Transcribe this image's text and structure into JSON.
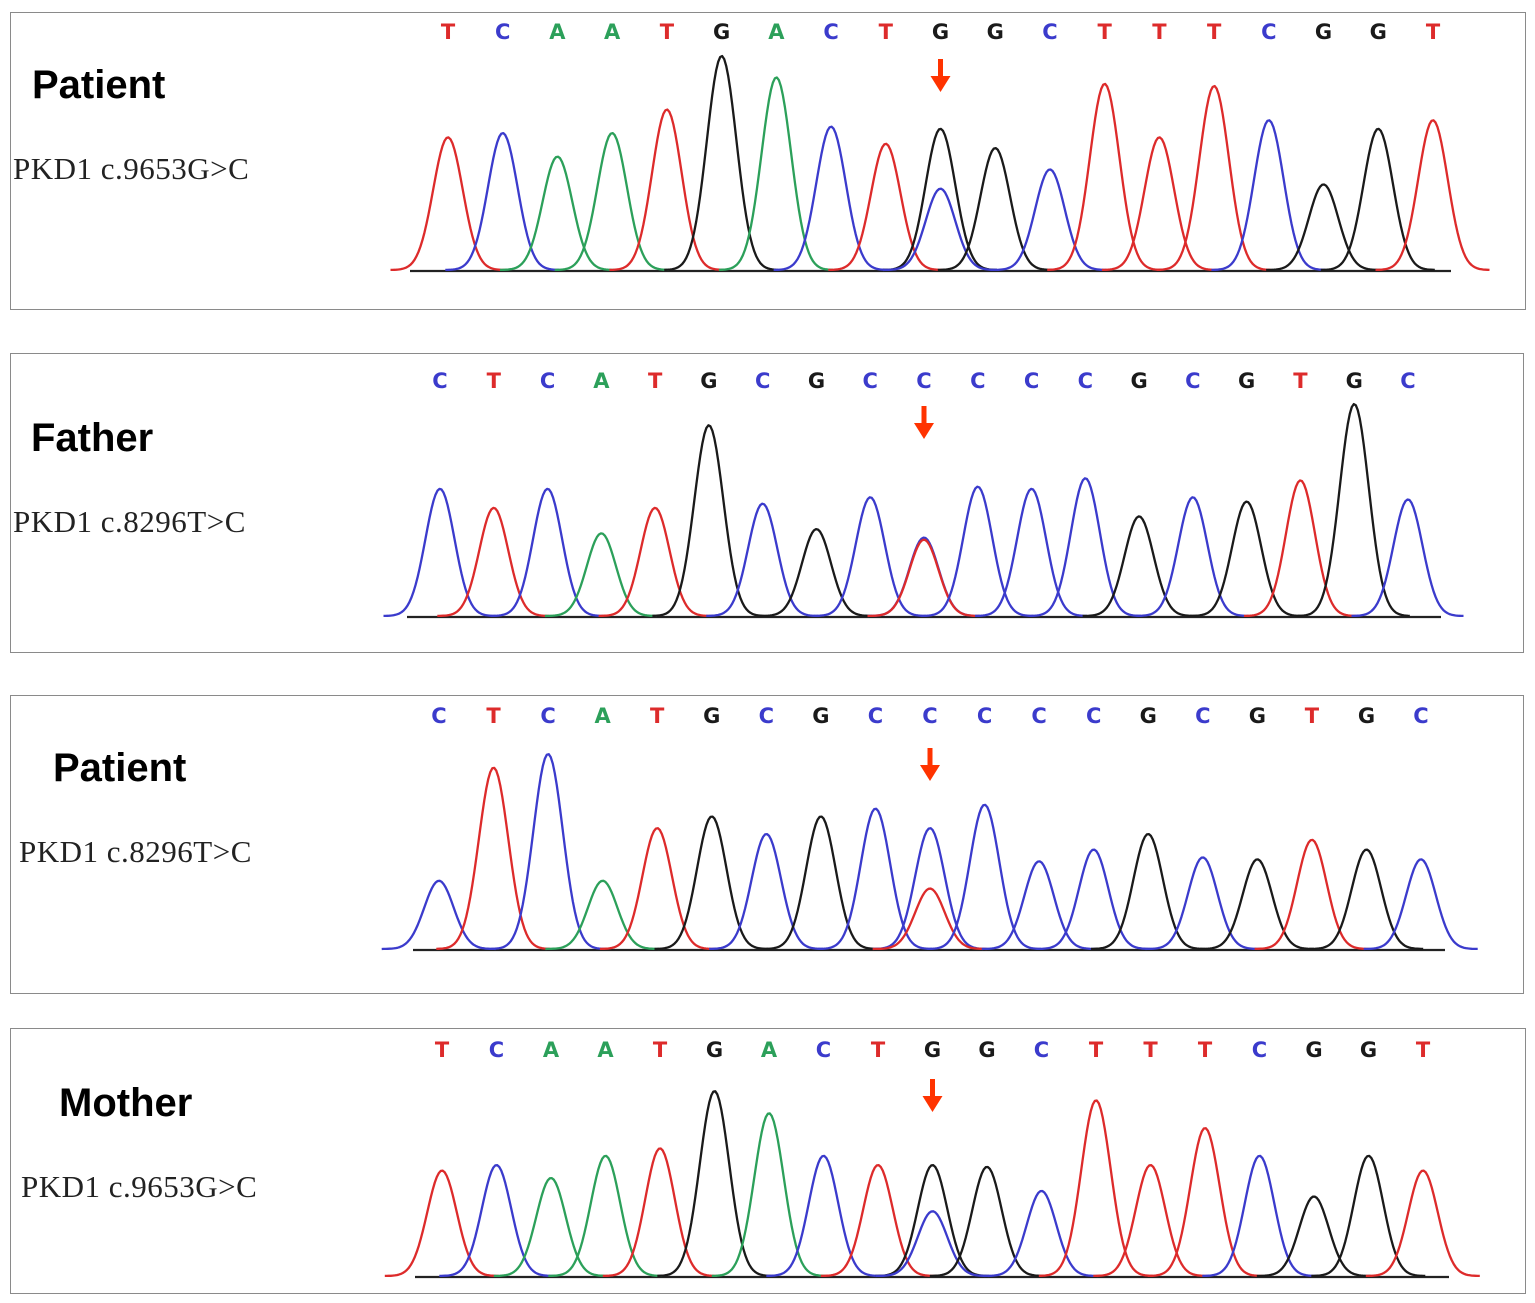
{
  "colors": {
    "A": "#2ca05a",
    "C": "#3b3bcc",
    "G": "#1a1a1a",
    "T": "#dd2b2b",
    "arrow": "#ff3300",
    "baseline": "#222222"
  },
  "panels": [
    {
      "label": "Patient",
      "variant": "PKD1  c.9653G>C",
      "bases": [
        "T",
        "C",
        "A",
        "A",
        "T",
        "G",
        "A",
        "C",
        "T",
        "G",
        "G",
        "C",
        "T",
        "T",
        "T",
        "C",
        "G",
        "G",
        "T"
      ],
      "peak_heights": [
        0.62,
        0.64,
        0.53,
        0.64,
        0.75,
        1.0,
        0.9,
        0.67,
        0.59,
        0.66,
        0.57,
        0.47,
        0.87,
        0.62,
        0.86,
        0.7,
        0.4,
        0.66,
        0.7
      ],
      "mutation_index": 9,
      "secondary_peak": {
        "base": "C",
        "height": 0.38
      }
    },
    {
      "label": "Father",
      "variant": "PKD1  c.8296T>C",
      "bases": [
        "C",
        "T",
        "C",
        "A",
        "T",
        "G",
        "C",
        "G",
        "C",
        "C",
        "C",
        "C",
        "C",
        "G",
        "C",
        "G",
        "T",
        "G",
        "C"
      ],
      "peak_heights": [
        0.6,
        0.51,
        0.6,
        0.39,
        0.51,
        0.9,
        0.53,
        0.41,
        0.56,
        0.37,
        0.61,
        0.6,
        0.65,
        0.47,
        0.56,
        0.54,
        0.64,
        1.0,
        0.55
      ],
      "mutation_index": 9,
      "secondary_peak": {
        "base": "T",
        "height": 0.36
      }
    },
    {
      "label": "Patient",
      "variant": "PKD1  c.8296T>C",
      "bases": [
        "C",
        "T",
        "C",
        "A",
        "T",
        "G",
        "C",
        "G",
        "C",
        "C",
        "C",
        "C",
        "C",
        "G",
        "C",
        "G",
        "T",
        "G",
        "C"
      ],
      "peak_heights": [
        0.35,
        0.93,
        1.0,
        0.35,
        0.62,
        0.68,
        0.59,
        0.68,
        0.72,
        0.62,
        0.74,
        0.45,
        0.51,
        0.59,
        0.47,
        0.46,
        0.56,
        0.51,
        0.46
      ],
      "mutation_index": 9,
      "secondary_peak": {
        "base": "T",
        "height": 0.31
      }
    },
    {
      "label": "Mother",
      "variant": "PKD1  c.9653G>C",
      "bases": [
        "T",
        "C",
        "A",
        "A",
        "T",
        "G",
        "A",
        "C",
        "T",
        "G",
        "G",
        "C",
        "T",
        "T",
        "T",
        "C",
        "G",
        "G",
        "T"
      ],
      "peak_heights": [
        0.57,
        0.6,
        0.53,
        0.65,
        0.69,
        1.0,
        0.88,
        0.65,
        0.6,
        0.6,
        0.59,
        0.46,
        0.95,
        0.6,
        0.8,
        0.65,
        0.43,
        0.65,
        0.57
      ],
      "mutation_index": 9,
      "secondary_peak": {
        "base": "C",
        "height": 0.35
      }
    }
  ]
}
